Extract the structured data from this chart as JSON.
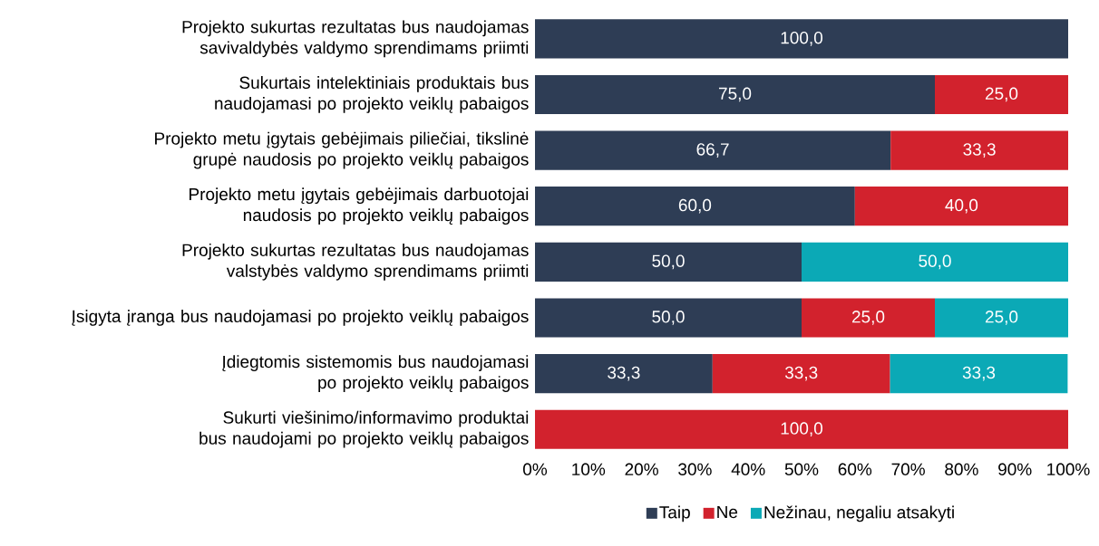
{
  "chart_data": {
    "type": "bar",
    "orientation": "horizontal",
    "stacked": true,
    "categories": [
      "Projekto sukurtas rezultatas bus naudojamas savivaldybės valdymo sprendimams priimti",
      "Sukurtais intelektiniais produktais bus naudojamasi po projekto veiklų pabaigos",
      "Projekto metu įgytais gebėjimais piliečiai, tikslinė grupė naudosis po projekto veiklų pabaigos",
      "Projekto metu įgytais gebėjimais darbuotojai naudosis po projekto veiklų pabaigos",
      "Projekto sukurtas rezultatas bus naudojamas valstybės valdymo sprendimams priimti",
      "Įsigyta įranga bus naudojamasi po projekto veiklų pabaigos",
      "Įdiegtomis sistemomis bus naudojamasi po projekto veiklų pabaigos",
      "Sukurti viešinimo/informavimo produktai bus naudojami po projekto veiklų pabaigos"
    ],
    "series": [
      {
        "name": "Taip",
        "color": "#2e3d55",
        "values": [
          100.0,
          75.0,
          66.7,
          60.0,
          50.0,
          50.0,
          33.3,
          null
        ],
        "value_labels": [
          "100,0",
          "75,0",
          "66,7",
          "60,0",
          "50,0",
          "50,0",
          "33,3",
          null
        ]
      },
      {
        "name": "Ne",
        "color": "#d2222d",
        "values": [
          null,
          25.0,
          33.3,
          40.0,
          null,
          25.0,
          33.3,
          100.0
        ],
        "value_labels": [
          null,
          "25,0",
          "33,3",
          "40,0",
          null,
          "25,0",
          "33,3",
          "100,0"
        ]
      },
      {
        "name": "Nežinau, negaliu atsakyti",
        "color": "#0ba9b6",
        "values": [
          null,
          null,
          null,
          null,
          50.0,
          25.0,
          33.3,
          null
        ],
        "value_labels": [
          null,
          null,
          null,
          null,
          "50,0",
          "25,0",
          "33,3",
          null
        ]
      }
    ],
    "xlim": [
      0,
      100
    ],
    "xticks": [
      {
        "value": 0,
        "label": "0%"
      },
      {
        "value": 10,
        "label": "10%"
      },
      {
        "value": 20,
        "label": "20%"
      },
      {
        "value": 30,
        "label": "30%"
      },
      {
        "value": 40,
        "label": "40%"
      },
      {
        "value": 50,
        "label": "50%"
      },
      {
        "value": 60,
        "label": "60%"
      },
      {
        "value": 70,
        "label": "70%"
      },
      {
        "value": 80,
        "label": "80%"
      },
      {
        "value": 90,
        "label": "90%"
      },
      {
        "value": 100,
        "label": "100%"
      }
    ],
    "legend": "bottom"
  }
}
